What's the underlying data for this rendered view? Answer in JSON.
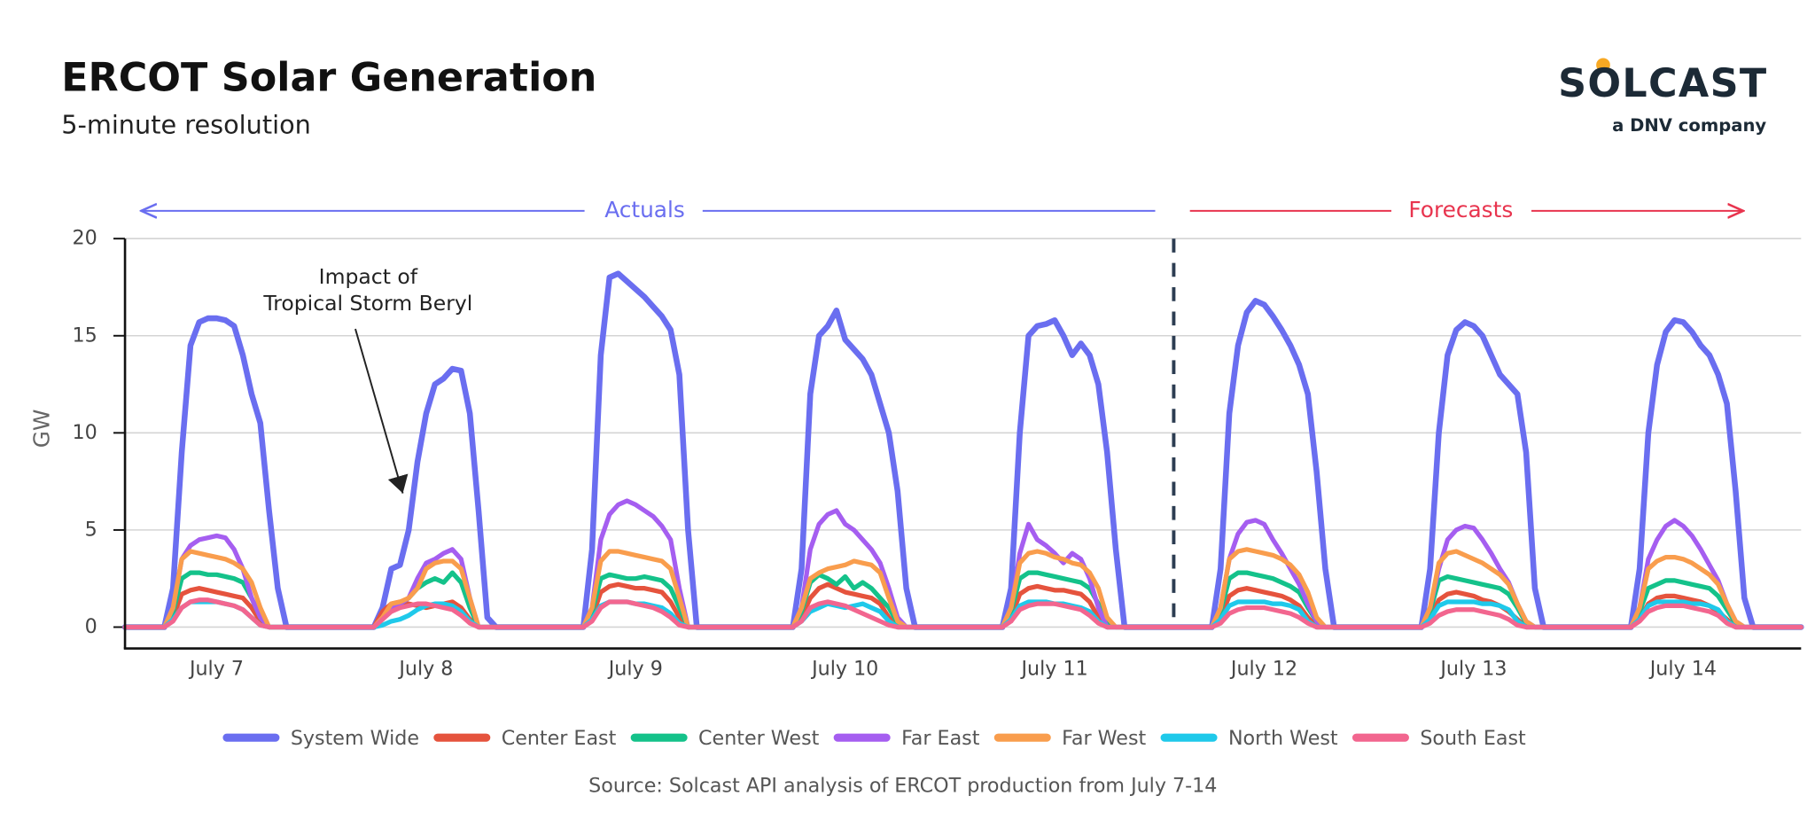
{
  "chart_data": {
    "type": "line",
    "title": "ERCOT Solar Generation",
    "subtitle": "5-minute resolution",
    "logo": {
      "name": "SOLCAST",
      "tagline": "a DNV company"
    },
    "y_label": "GW",
    "source": "Source: Solcast API analysis of ERCOT production from July 7-14",
    "annotations": {
      "actuals": "Actuals",
      "forecasts": "Forecasts",
      "storm": [
        "Impact of",
        "Tropical Storm Beryl"
      ]
    },
    "grid": true,
    "xlim": [
      1.5,
      193.5
    ],
    "ylim": [
      -1.1,
      20
    ],
    "yticks": [
      0,
      5,
      10,
      15,
      20
    ],
    "xticks": [
      {
        "value": 12,
        "label": "July 7"
      },
      {
        "value": 36,
        "label": "July 8"
      },
      {
        "value": 60,
        "label": "July 9"
      },
      {
        "value": 84,
        "label": "July 10"
      },
      {
        "value": 108,
        "label": "July 11"
      },
      {
        "value": 132,
        "label": "July 12"
      },
      {
        "value": 156,
        "label": "July 13"
      },
      {
        "value": 180,
        "label": "July 14"
      }
    ],
    "x": [
      1.5,
      6,
      7,
      8,
      9,
      10,
      11,
      12,
      13,
      14,
      15,
      16,
      17,
      18,
      19,
      20,
      30,
      31,
      32,
      33,
      34,
      35,
      36,
      37,
      38,
      39,
      40,
      41,
      42,
      43,
      44,
      54,
      55,
      56,
      57,
      58,
      59,
      60,
      61,
      62,
      63,
      64,
      65,
      66,
      67,
      68,
      78,
      79,
      80,
      81,
      82,
      83,
      84,
      85,
      86,
      87,
      88,
      89,
      90,
      91,
      92,
      102,
      103,
      104,
      105,
      106,
      107,
      108,
      109,
      110,
      111,
      112,
      113,
      114,
      115,
      116,
      126,
      127,
      128,
      129,
      130,
      131,
      132,
      133,
      134,
      135,
      136,
      137,
      138,
      139,
      140,
      150,
      151,
      152,
      153,
      154,
      155,
      156,
      157,
      158,
      159,
      160,
      161,
      162,
      163,
      164,
      174,
      175,
      176,
      177,
      178,
      179,
      180,
      181,
      182,
      183,
      184,
      185,
      186,
      187,
      188,
      193.5
    ],
    "series": [
      {
        "name": "System Wide",
        "color": "#6a6ef0",
        "values": [
          0,
          0,
          2,
          9,
          14.5,
          15.7,
          15.9,
          15.9,
          15.8,
          15.5,
          14,
          12,
          10.5,
          6,
          2,
          0,
          0,
          1,
          3,
          3.2,
          5,
          8.5,
          11,
          12.5,
          12.8,
          13.3,
          13.2,
          11,
          6,
          0.5,
          0,
          0,
          4,
          14,
          18,
          18.2,
          17.8,
          17.4,
          17,
          16.5,
          16,
          15.3,
          13,
          5,
          0,
          0,
          0,
          3,
          12,
          15,
          15.5,
          16.3,
          14.8,
          14.3,
          13.8,
          13,
          11.5,
          10,
          7,
          2,
          0,
          0,
          2,
          10,
          15,
          15.5,
          15.6,
          15.8,
          15,
          14,
          14.6,
          14,
          12.5,
          9,
          4,
          0,
          0,
          3,
          11,
          14.5,
          16.2,
          16.8,
          16.6,
          16,
          15.3,
          14.5,
          13.5,
          12,
          8,
          3,
          0,
          0,
          3,
          10,
          14,
          15.3,
          15.7,
          15.5,
          15,
          14,
          13,
          12.5,
          12,
          9,
          2,
          0,
          0,
          3,
          10,
          13.5,
          15.2,
          15.8,
          15.7,
          15.2,
          14.5,
          14,
          13,
          11.5,
          7,
          1.5,
          0,
          0
        ]
      },
      {
        "name": "Center East",
        "color": "#e5533d",
        "values": [
          0,
          0,
          0.5,
          1.7,
          1.9,
          2,
          1.9,
          1.8,
          1.7,
          1.6,
          1.5,
          1,
          0.3,
          0,
          0,
          0,
          0,
          0.8,
          1.2,
          1.3,
          1.2,
          1.1,
          1,
          1.1,
          1.2,
          1.3,
          1,
          0.4,
          0,
          0,
          0,
          0,
          0.5,
          1.8,
          2.1,
          2.2,
          2.1,
          2,
          2,
          1.9,
          1.8,
          1.3,
          0.5,
          0,
          0,
          0,
          0,
          0.5,
          1.5,
          2,
          2.2,
          2,
          1.8,
          1.7,
          1.6,
          1.5,
          1.2,
          0.5,
          0,
          0,
          0,
          0,
          0.5,
          1.7,
          2,
          2.1,
          2,
          1.9,
          1.9,
          1.8,
          1.7,
          1.3,
          0.5,
          0,
          0,
          0,
          0,
          0.5,
          1.6,
          1.9,
          2,
          1.9,
          1.8,
          1.7,
          1.6,
          1.4,
          1.1,
          0.5,
          0,
          0,
          0,
          0,
          0.5,
          1.4,
          1.7,
          1.8,
          1.7,
          1.6,
          1.4,
          1.3,
          1.1,
          0.8,
          0.4,
          0,
          0,
          0,
          0,
          0.4,
          1.2,
          1.5,
          1.6,
          1.6,
          1.5,
          1.4,
          1.3,
          1.1,
          0.8,
          0.4,
          0,
          0,
          0,
          0
        ]
      },
      {
        "name": "Center West",
        "color": "#14c28a",
        "values": [
          0,
          0,
          0.8,
          2.5,
          2.8,
          2.8,
          2.7,
          2.7,
          2.6,
          2.5,
          2.3,
          1.5,
          0.5,
          0,
          0,
          0,
          0,
          0.4,
          1,
          1.2,
          1.5,
          2,
          2.3,
          2.5,
          2.3,
          2.8,
          2.3,
          1,
          0,
          0,
          0,
          0,
          0.8,
          2.5,
          2.7,
          2.6,
          2.5,
          2.5,
          2.6,
          2.5,
          2.4,
          2,
          1,
          0,
          0,
          0,
          0,
          0.8,
          2.3,
          2.7,
          2.5,
          2.2,
          2.6,
          2,
          2.3,
          2,
          1.5,
          1,
          0.2,
          0,
          0,
          0,
          0.8,
          2.5,
          2.8,
          2.8,
          2.7,
          2.6,
          2.5,
          2.4,
          2.3,
          2,
          1.2,
          0.3,
          0,
          0,
          0,
          0.8,
          2.5,
          2.8,
          2.8,
          2.7,
          2.6,
          2.5,
          2.3,
          2.1,
          1.8,
          1,
          0.3,
          0,
          0,
          0,
          0.8,
          2.4,
          2.6,
          2.5,
          2.4,
          2.3,
          2.2,
          2.1,
          2,
          1.7,
          1,
          0.2,
          0,
          0,
          0,
          0.8,
          2,
          2.2,
          2.4,
          2.4,
          2.3,
          2.2,
          2.1,
          2,
          1.6,
          0.9,
          0.2,
          0,
          0,
          0
        ]
      },
      {
        "name": "Far East",
        "color": "#a55ef0",
        "values": [
          0,
          0,
          1,
          3.5,
          4.2,
          4.5,
          4.6,
          4.7,
          4.6,
          4,
          3,
          1.5,
          0.5,
          0,
          0,
          0,
          0,
          0.5,
          1,
          1.2,
          1.5,
          2.5,
          3.3,
          3.5,
          3.8,
          4,
          3.5,
          1.5,
          0,
          0,
          0,
          0,
          1,
          4.5,
          5.8,
          6.3,
          6.5,
          6.3,
          6,
          5.7,
          5.2,
          4.5,
          2,
          0,
          0,
          0,
          0,
          1,
          4,
          5.3,
          5.8,
          6,
          5.3,
          5,
          4.5,
          4,
          3.3,
          2,
          0.5,
          0,
          0,
          0,
          1,
          3.8,
          5.3,
          4.5,
          4.2,
          3.8,
          3.3,
          3.8,
          3.5,
          2.5,
          1,
          0,
          0,
          0,
          0,
          1,
          3.5,
          4.8,
          5.4,
          5.5,
          5.3,
          4.5,
          3.8,
          3,
          2.2,
          1.2,
          0.3,
          0,
          0,
          0,
          1,
          3,
          4.5,
          5,
          5.2,
          5.1,
          4.5,
          3.8,
          3,
          2.3,
          1.2,
          0.3,
          0,
          0,
          0,
          1,
          3.5,
          4.5,
          5.2,
          5.5,
          5.2,
          4.7,
          4,
          3.2,
          2.4,
          1.2,
          0.3,
          0,
          0,
          0
        ]
      },
      {
        "name": "Far West",
        "color": "#f99d4d",
        "values": [
          0,
          0,
          1,
          3.5,
          3.9,
          3.8,
          3.7,
          3.6,
          3.5,
          3.3,
          3,
          2.3,
          1,
          0,
          0,
          0,
          0,
          0.5,
          1.2,
          1.3,
          1.5,
          2,
          3,
          3.3,
          3.4,
          3.4,
          3,
          1.5,
          0,
          0,
          0,
          0,
          1,
          3.4,
          3.9,
          3.9,
          3.8,
          3.7,
          3.6,
          3.5,
          3.4,
          3,
          1.5,
          0,
          0,
          0,
          0,
          1,
          2.5,
          2.8,
          3,
          3.1,
          3.2,
          3.4,
          3.3,
          3.2,
          2.8,
          1.5,
          0.3,
          0,
          0,
          0,
          1,
          3.3,
          3.8,
          3.9,
          3.8,
          3.6,
          3.5,
          3.3,
          3.2,
          2.8,
          2,
          0.5,
          0,
          0,
          0,
          1,
          3.5,
          3.9,
          4,
          3.9,
          3.8,
          3.7,
          3.5,
          3.2,
          2.7,
          1.8,
          0.5,
          0,
          0,
          0,
          1,
          3.3,
          3.8,
          3.9,
          3.7,
          3.5,
          3.3,
          3,
          2.7,
          2.2,
          1.2,
          0.3,
          0,
          0,
          0,
          1,
          3,
          3.4,
          3.6,
          3.6,
          3.5,
          3.3,
          3,
          2.7,
          2.2,
          1.2,
          0.3,
          0,
          0,
          0
        ]
      },
      {
        "name": "North West",
        "color": "#1fc9ea",
        "values": [
          0,
          0,
          0.4,
          1,
          1.3,
          1.3,
          1.3,
          1.3,
          1.2,
          1.1,
          0.9,
          0.5,
          0.1,
          0,
          0,
          0,
          0,
          0.1,
          0.3,
          0.4,
          0.6,
          0.9,
          1.1,
          1.2,
          1.2,
          1.1,
          0.8,
          0.3,
          0,
          0,
          0,
          0,
          0.4,
          1.1,
          1.3,
          1.3,
          1.3,
          1.2,
          1.2,
          1.1,
          1,
          0.7,
          0.2,
          0,
          0,
          0,
          0,
          0.3,
          0.8,
          1,
          1.2,
          1.1,
          1,
          1.1,
          1.2,
          1,
          0.8,
          0.3,
          0,
          0,
          0,
          0,
          0.4,
          1.1,
          1.3,
          1.3,
          1.3,
          1.2,
          1.2,
          1.1,
          1,
          0.8,
          0.3,
          0,
          0,
          0,
          0,
          0.4,
          1.1,
          1.3,
          1.3,
          1.3,
          1.3,
          1.2,
          1.2,
          1.1,
          0.9,
          0.3,
          0,
          0,
          0,
          0,
          0.4,
          1.1,
          1.3,
          1.3,
          1.3,
          1.3,
          1.2,
          1.2,
          1.1,
          0.9,
          0.3,
          0,
          0,
          0,
          0,
          0.4,
          1.1,
          1.3,
          1.3,
          1.3,
          1.3,
          1.2,
          1.2,
          1.1,
          0.9,
          0.3,
          0,
          0,
          0,
          0
        ]
      },
      {
        "name": "South East",
        "color": "#f2668f",
        "values": [
          0,
          0,
          0.3,
          1,
          1.3,
          1.4,
          1.4,
          1.3,
          1.2,
          1.1,
          0.9,
          0.5,
          0.1,
          0,
          0,
          0,
          0,
          0.4,
          0.8,
          1,
          1.1,
          1.2,
          1.2,
          1.1,
          1,
          0.9,
          0.6,
          0.2,
          0,
          0,
          0,
          0,
          0.3,
          1,
          1.3,
          1.3,
          1.3,
          1.2,
          1.1,
          1,
          0.8,
          0.5,
          0.1,
          0,
          0,
          0,
          0,
          0.3,
          1,
          1.2,
          1.3,
          1.2,
          1.1,
          0.9,
          0.7,
          0.5,
          0.3,
          0.1,
          0,
          0,
          0,
          0,
          0.3,
          0.9,
          1.1,
          1.2,
          1.2,
          1.2,
          1.1,
          1,
          0.9,
          0.6,
          0.2,
          0,
          0,
          0,
          0,
          0.2,
          0.7,
          0.9,
          1,
          1,
          1,
          0.9,
          0.8,
          0.7,
          0.5,
          0.2,
          0,
          0,
          0,
          0,
          0.2,
          0.6,
          0.8,
          0.9,
          0.9,
          0.9,
          0.8,
          0.7,
          0.6,
          0.4,
          0.1,
          0,
          0,
          0,
          0,
          0.3,
          0.8,
          1,
          1.1,
          1.1,
          1.1,
          1,
          0.9,
          0.8,
          0.6,
          0.2,
          0,
          0,
          0,
          0
        ]
      }
    ]
  }
}
